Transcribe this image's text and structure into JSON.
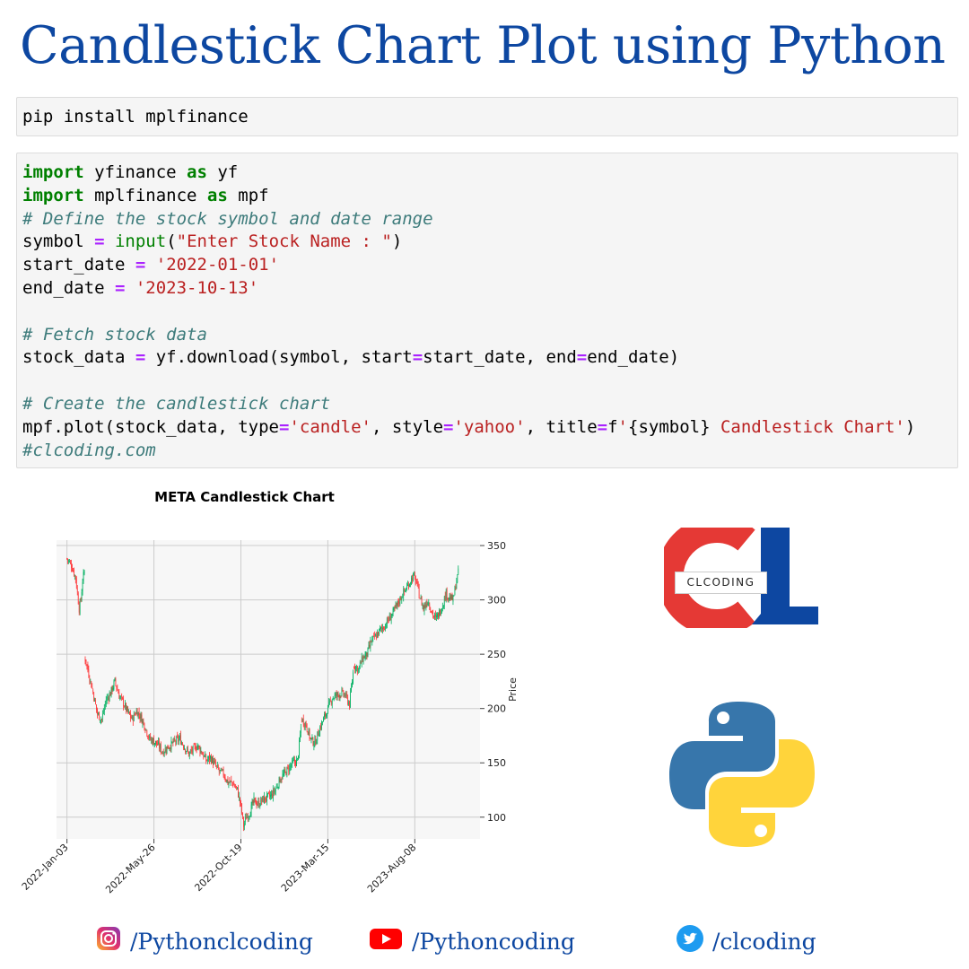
{
  "page": {
    "title": "Candlestick Chart Plot using Python"
  },
  "cells": {
    "install": "pip install mplfinance",
    "code": [
      [
        [
          "kw",
          "import"
        ],
        [
          "t",
          " yfinance "
        ],
        [
          "kw",
          "as"
        ],
        [
          "t",
          " yf"
        ]
      ],
      [
        [
          "kw",
          "import"
        ],
        [
          "t",
          " mplfinance "
        ],
        [
          "kw",
          "as"
        ],
        [
          "t",
          " mpf"
        ]
      ],
      [
        [
          "cm",
          "# Define the stock symbol and date range"
        ]
      ],
      [
        [
          "t",
          "symbol "
        ],
        [
          "op",
          "="
        ],
        [
          "t",
          " "
        ],
        [
          "builtin",
          "input"
        ],
        [
          "t",
          "("
        ],
        [
          "str",
          "\"Enter Stock Name : \""
        ],
        [
          "t",
          ")"
        ]
      ],
      [
        [
          "t",
          "start_date "
        ],
        [
          "op",
          "="
        ],
        [
          "t",
          " "
        ],
        [
          "str",
          "'2022-01-01'"
        ]
      ],
      [
        [
          "t",
          "end_date "
        ],
        [
          "op",
          "="
        ],
        [
          "t",
          " "
        ],
        [
          "str",
          "'2023-10-13'"
        ]
      ],
      [],
      [
        [
          "cm",
          "# Fetch stock data"
        ]
      ],
      [
        [
          "t",
          "stock_data "
        ],
        [
          "op",
          "="
        ],
        [
          "t",
          " yf.download(symbol, start"
        ],
        [
          "op",
          "="
        ],
        [
          "t",
          "start_date, end"
        ],
        [
          "op",
          "="
        ],
        [
          "t",
          "end_date)"
        ]
      ],
      [],
      [
        [
          "cm",
          "# Create the candlestick chart"
        ]
      ],
      [
        [
          "t",
          "mpf.plot(stock_data, type"
        ],
        [
          "op",
          "="
        ],
        [
          "str",
          "'candle'"
        ],
        [
          "t",
          ", style"
        ],
        [
          "op",
          "="
        ],
        [
          "str",
          "'yahoo'"
        ],
        [
          "t",
          ", title"
        ],
        [
          "op",
          "="
        ],
        [
          "t",
          "f"
        ],
        [
          "str",
          "'"
        ],
        [
          "t",
          "{symbol}"
        ],
        [
          "str",
          " Candlestick Chart'"
        ],
        [
          "t",
          ")"
        ]
      ],
      [
        [
          "cm",
          "#clcoding.com"
        ]
      ]
    ]
  },
  "chart_data": {
    "type": "candlestick",
    "title": "META Candlestick Chart",
    "ylabel": "Price",
    "ylim": [
      80,
      355
    ],
    "yticks": [
      100,
      150,
      200,
      250,
      300,
      350
    ],
    "xticks": [
      "2022-Jan-03",
      "2022-May-26",
      "2022-Oct-19",
      "2023-Mar-15",
      "2023-Aug-08"
    ],
    "xtick_index": [
      0,
      100,
      200,
      300,
      400
    ],
    "n_sessions": 450,
    "grid": true,
    "up_color": "#00b060",
    "down_color": "#fe3032",
    "close_path": [
      [
        0,
        338
      ],
      [
        5,
        332
      ],
      [
        10,
        320
      ],
      [
        14,
        292
      ],
      [
        16,
        300
      ],
      [
        18,
        318
      ],
      [
        20,
        326
      ],
      [
        21,
        246
      ],
      [
        25,
        232
      ],
      [
        30,
        215
      ],
      [
        35,
        195
      ],
      [
        40,
        190
      ],
      [
        45,
        208
      ],
      [
        50,
        214
      ],
      [
        55,
        225
      ],
      [
        60,
        212
      ],
      [
        65,
        205
      ],
      [
        70,
        196
      ],
      [
        75,
        190
      ],
      [
        80,
        198
      ],
      [
        85,
        192
      ],
      [
        90,
        183
      ],
      [
        95,
        172
      ],
      [
        100,
        170
      ],
      [
        105,
        166
      ],
      [
        110,
        160
      ],
      [
        115,
        164
      ],
      [
        120,
        167
      ],
      [
        125,
        170
      ],
      [
        130,
        172
      ],
      [
        135,
        165
      ],
      [
        140,
        158
      ],
      [
        145,
        162
      ],
      [
        150,
        166
      ],
      [
        155,
        160
      ],
      [
        160,
        152
      ],
      [
        165,
        155
      ],
      [
        170,
        148
      ],
      [
        175,
        142
      ],
      [
        180,
        140
      ],
      [
        185,
        132
      ],
      [
        190,
        132
      ],
      [
        196,
        125
      ],
      [
        200,
        110
      ],
      [
        203,
        92
      ],
      [
        206,
        100
      ],
      [
        210,
        104
      ],
      [
        215,
        115
      ],
      [
        220,
        112
      ],
      [
        225,
        116
      ],
      [
        230,
        118
      ],
      [
        235,
        120
      ],
      [
        240,
        126
      ],
      [
        245,
        135
      ],
      [
        250,
        140
      ],
      [
        255,
        145
      ],
      [
        260,
        150
      ],
      [
        265,
        152
      ],
      [
        270,
        190
      ],
      [
        275,
        185
      ],
      [
        280,
        172
      ],
      [
        285,
        168
      ],
      [
        290,
        180
      ],
      [
        295,
        190
      ],
      [
        300,
        200
      ],
      [
        305,
        210
      ],
      [
        310,
        212
      ],
      [
        315,
        214
      ],
      [
        320,
        212
      ],
      [
        325,
        204
      ],
      [
        330,
        240
      ],
      [
        335,
        236
      ],
      [
        340,
        246
      ],
      [
        345,
        250
      ],
      [
        350,
        262
      ],
      [
        355,
        266
      ],
      [
        360,
        272
      ],
      [
        365,
        276
      ],
      [
        370,
        282
      ],
      [
        375,
        288
      ],
      [
        380,
        296
      ],
      [
        385,
        304
      ],
      [
        390,
        310
      ],
      [
        395,
        318
      ],
      [
        398,
        322
      ],
      [
        402,
        316
      ],
      [
        405,
        305
      ],
      [
        410,
        292
      ],
      [
        415,
        300
      ],
      [
        420,
        288
      ],
      [
        424,
        282
      ],
      [
        428,
        288
      ],
      [
        432,
        296
      ],
      [
        436,
        306
      ],
      [
        440,
        302
      ],
      [
        444,
        300
      ],
      [
        448,
        318
      ],
      [
        450,
        325
      ]
    ],
    "gaps": [
      [
        20,
        21
      ],
      [
        269,
        270
      ],
      [
        329,
        330
      ]
    ]
  },
  "logo": {
    "badge_text": "CLCODING",
    "red": "#e53935",
    "blue": "#0d47a1"
  },
  "socials": [
    {
      "icon": "instagram-icon",
      "handle": "/Pythonclcoding"
    },
    {
      "icon": "youtube-icon",
      "handle": "/Pythoncoding"
    },
    {
      "icon": "twitter-icon",
      "handle": "/clcoding"
    }
  ]
}
